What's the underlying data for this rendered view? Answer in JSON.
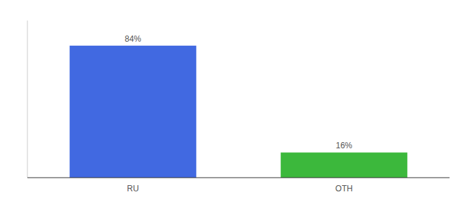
{
  "chart_data": {
    "type": "bar",
    "categories": [
      "RU",
      "OTH"
    ],
    "values": [
      84,
      16
    ],
    "value_labels": [
      "84%",
      "16%"
    ],
    "colors": [
      "#4169e1",
      "#3cb83c"
    ],
    "ylim": [
      0,
      100
    ],
    "data_labels": true,
    "tick_labels": "x",
    "grid": false
  }
}
